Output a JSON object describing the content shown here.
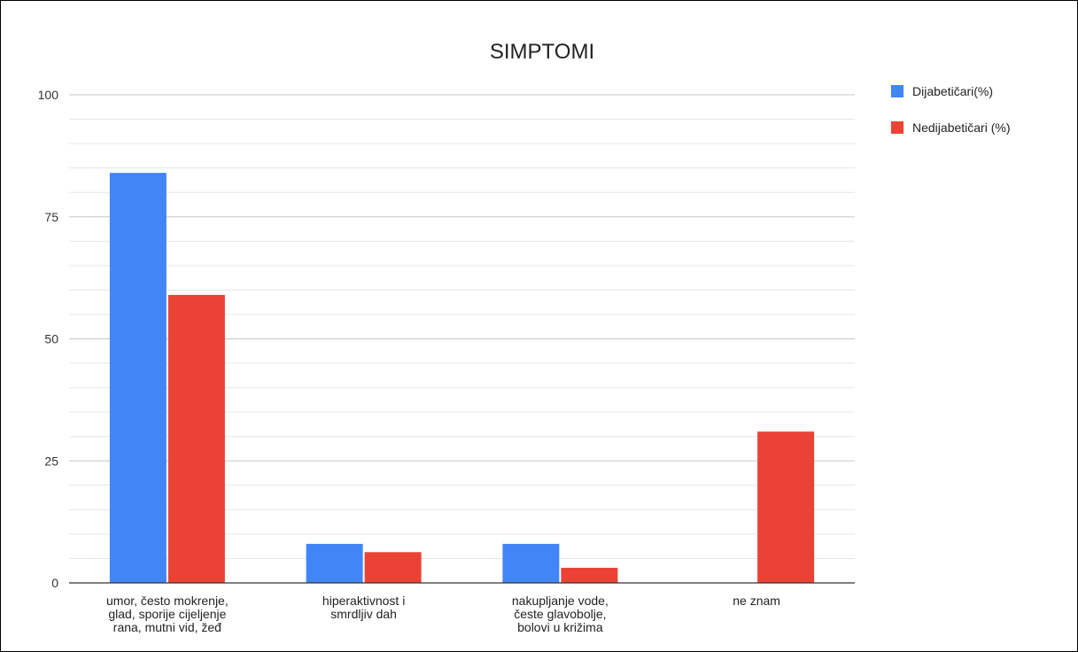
{
  "chart_data": {
    "type": "bar",
    "title": "SIMPTOMI",
    "xlabel": "",
    "ylabel": "",
    "ylim": [
      0,
      100
    ],
    "yticks": [
      "0",
      "25",
      "50",
      "75",
      "100"
    ],
    "grid": true,
    "legend_position": "top-right",
    "categories": [
      [
        "umor, često mokrenje,",
        "glad, sporije cijeljenje",
        "rana, mutni vid, žeđ"
      ],
      [
        "hiperaktivnost i",
        "smrdljiv dah"
      ],
      [
        "nakupljanje vode,",
        "česte glavobolje,",
        "bolovi u križima"
      ],
      [
        "ne znam"
      ]
    ],
    "series": [
      {
        "name": "Dijabetičari(%)",
        "color": "#4285f4",
        "values": [
          84,
          8,
          8,
          0
        ]
      },
      {
        "name": "Nedijabetičari (%)",
        "color": "#ea4335",
        "values": [
          59,
          6.3,
          3.1,
          31
        ]
      }
    ]
  }
}
